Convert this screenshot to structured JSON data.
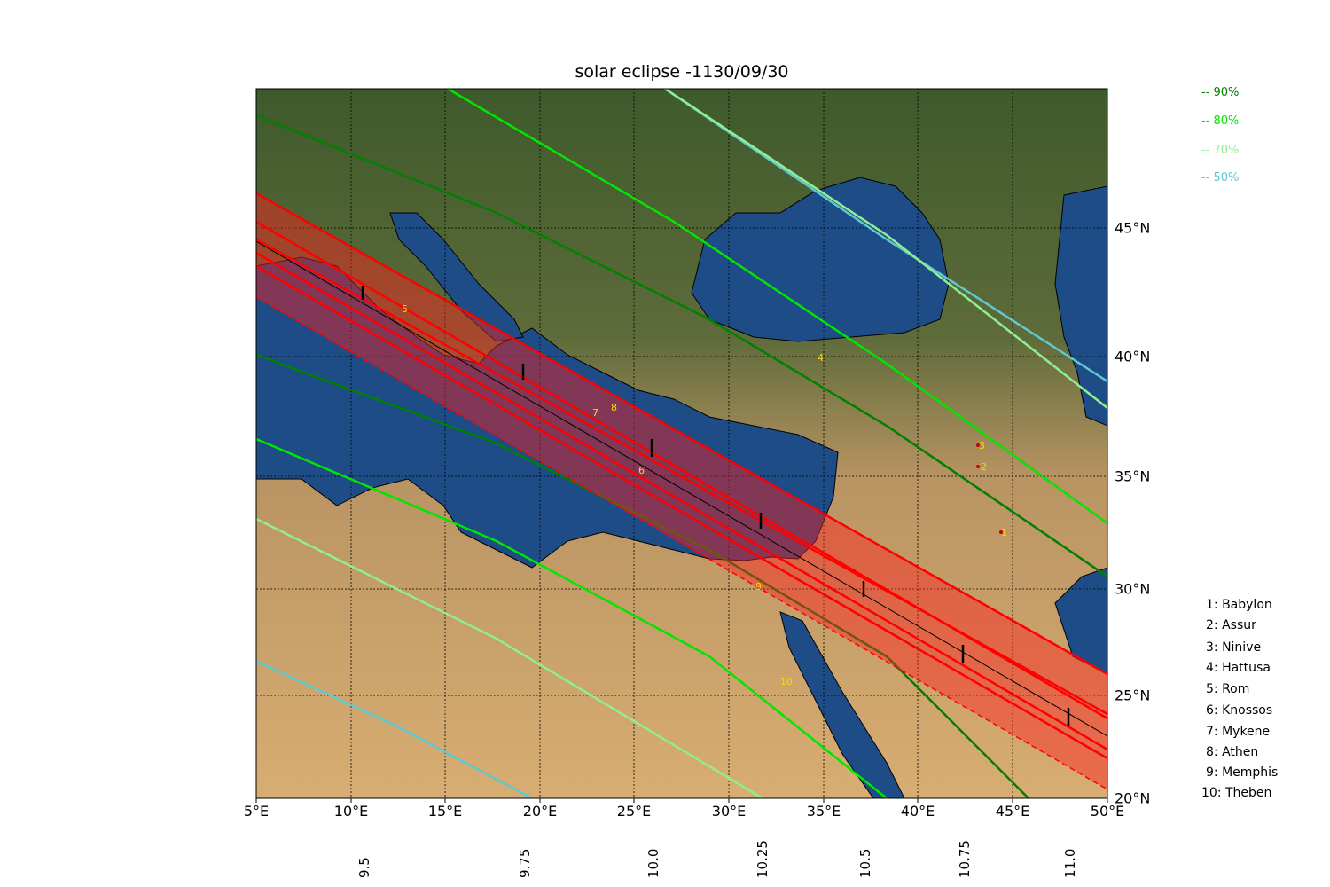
{
  "title": "solar eclipse -1130/09/30",
  "lon_ticks": [
    "5°E",
    "10°E",
    "15°E",
    "20°E",
    "25°E",
    "30°E",
    "35°E",
    "40°E",
    "45°E",
    "50°E"
  ],
  "lat_ticks": [
    "45°N",
    "40°N",
    "35°N",
    "30°N",
    "25°N",
    "20°N"
  ],
  "time_ticks": [
    "9.5",
    "9.75",
    "10.0",
    "10.25",
    "10.5",
    "10.75",
    "11.0"
  ],
  "legend": [
    {
      "label": "-- 90%",
      "color": "#008000"
    },
    {
      "label": "-- 80%",
      "color": "#00e600"
    },
    {
      "label": "-- 70%",
      "color": "#90ee90"
    },
    {
      "label": "-- 50%",
      "color": "#5fc8d0"
    }
  ],
  "sites": [
    {
      "num": "1",
      "label": "1: Babylon"
    },
    {
      "num": "2",
      "label": "2: Assur"
    },
    {
      "num": "3",
      "label": "3: Ninive"
    },
    {
      "num": "4",
      "label": "4: Hattusa"
    },
    {
      "num": "5",
      "label": "5: Rom"
    },
    {
      "num": "6",
      "label": "6: Knossos"
    },
    {
      "num": "7",
      "label": "7: Mykene"
    },
    {
      "num": "8",
      "label": "8: Athen"
    },
    {
      "num": "9",
      "label": "9: Memphis"
    },
    {
      "num": "10",
      "label": "10: Theben"
    }
  ],
  "colors": {
    "totality": "#ff0000",
    "centerline": "#000000",
    "sea": "#1f4e8a",
    "land_north": "#3d5a2a",
    "desert": "#d4a86a"
  }
}
